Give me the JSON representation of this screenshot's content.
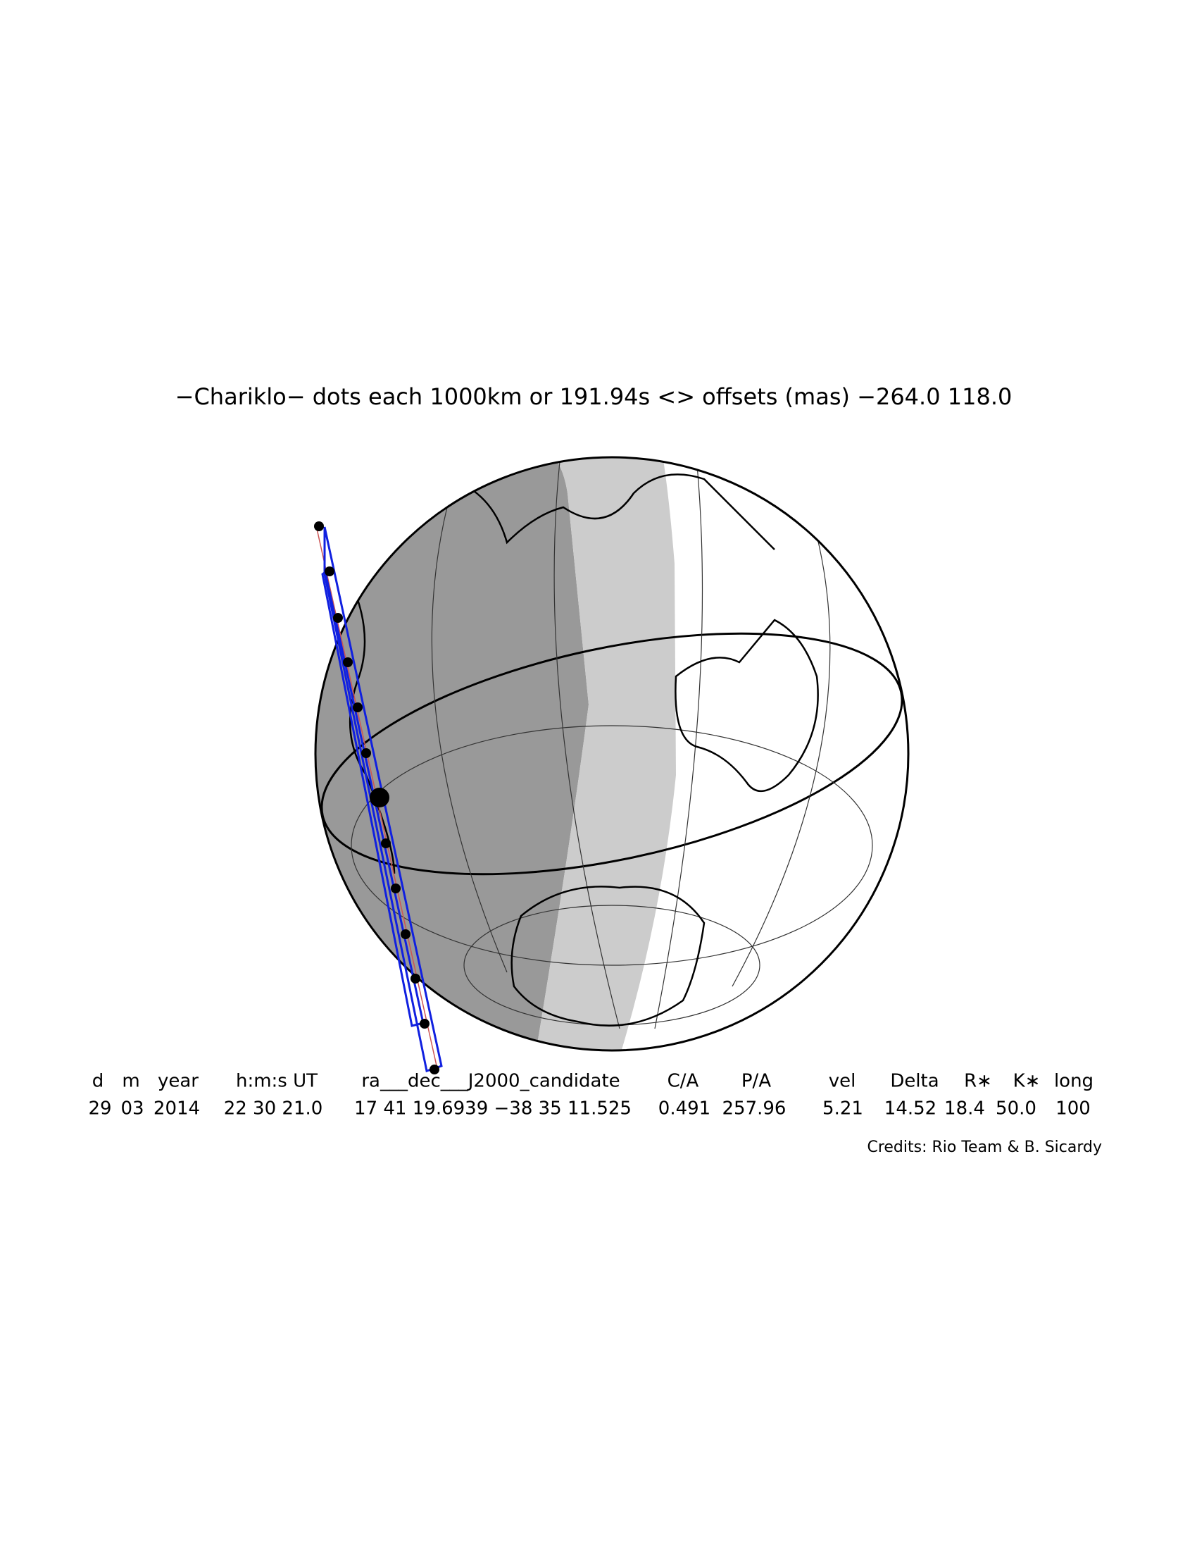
{
  "title": "−Chariklo− dots each 1000km or 191.94s <> offsets (mas) −264.0  118.0",
  "table": {
    "header": [
      "d",
      "m",
      "year",
      "h:m:s UT",
      "ra___dec___J2000_candidate",
      "C/A",
      "P/A",
      "vel",
      "Delta",
      "R∗",
      "K∗",
      "long"
    ],
    "values": [
      "29",
      "03",
      "2014",
      "22 30 21.0",
      "17 41 19.6939 −38 35 11.525",
      "0.491",
      "257.96",
      "5.21",
      "14.52",
      "18.4",
      "50.0",
      "100"
    ]
  },
  "credits": "Credits: Rio Team & B. Sicardy"
}
